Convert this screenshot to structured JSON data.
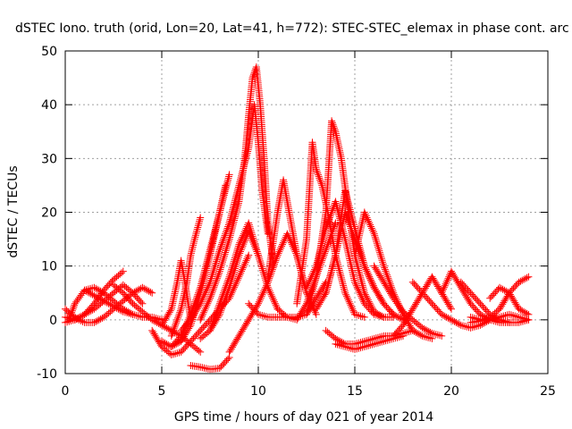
{
  "chart_data": {
    "type": "scatter",
    "title": "dSTEC Iono. truth (orid, Lon=20, Lat=41, h=772): STEC-STEC_elemax in phase cont. arc",
    "xlabel": "GPS time / hours of day 021 of year 2014",
    "ylabel": "dSTEC  / TECUs",
    "xlim": [
      0,
      25
    ],
    "ylim": [
      -10,
      50
    ],
    "x_ticks": [
      0,
      5,
      10,
      15,
      20,
      25
    ],
    "y_ticks": [
      -10,
      0,
      10,
      20,
      30,
      40,
      50
    ],
    "x_tick_labels": [
      "0",
      "5",
      "10",
      "15",
      "20",
      "25"
    ],
    "y_tick_labels": [
      "-10",
      "0",
      "10",
      "20",
      "30",
      "40",
      "50"
    ],
    "grid": true,
    "marker": "plus",
    "marker_color": "#ff0000",
    "series": [
      {
        "x": [
          0.0,
          0.5,
          1.0,
          1.5,
          2.0,
          2.5,
          3.0
        ],
        "y": [
          0.5,
          0.0,
          1.0,
          3.0,
          5.5,
          7.5,
          9.0
        ]
      },
      {
        "x": [
          0.0,
          0.5,
          1.0,
          1.5,
          2.0,
          2.5,
          3.0,
          3.5,
          4.0
        ],
        "y": [
          -0.5,
          0.0,
          1.0,
          2.0,
          3.5,
          5.0,
          6.5,
          5.0,
          3.0
        ]
      },
      {
        "x": [
          0.0,
          0.3,
          0.7,
          1.0,
          1.5,
          2.0,
          2.5,
          3.0,
          3.5,
          4.0,
          4.5
        ],
        "y": [
          2.0,
          1.0,
          0.0,
          -0.5,
          -0.5,
          0.5,
          2.0,
          3.5,
          5.0,
          6.0,
          5.0
        ]
      },
      {
        "x": [
          0.2,
          0.5,
          1.0,
          1.5,
          2.0,
          2.5,
          3.0,
          3.5
        ],
        "y": [
          0.0,
          3.0,
          5.5,
          6.0,
          5.0,
          3.5,
          2.0,
          1.0
        ]
      },
      {
        "x": [
          1.0,
          1.5,
          2.0,
          2.5,
          3.0,
          3.5,
          4.0,
          4.5,
          5.0
        ],
        "y": [
          5.5,
          4.5,
          3.5,
          2.5,
          1.5,
          1.0,
          0.5,
          0.5,
          0.0
        ]
      },
      {
        "x": [
          2.5,
          3.0,
          3.5,
          4.0,
          4.5,
          5.0,
          5.5,
          6.0,
          6.5,
          7.0
        ],
        "y": [
          6.5,
          5.0,
          3.0,
          1.5,
          0.0,
          -1.0,
          -2.0,
          -3.0,
          -4.5,
          -6.0
        ]
      },
      {
        "x": [
          4.5,
          5.0,
          5.5,
          6.0,
          6.5,
          7.0,
          7.5,
          8.0,
          8.5,
          9.0,
          9.5
        ],
        "y": [
          -2.0,
          -5.0,
          -6.5,
          -6.0,
          -4.0,
          -2.0,
          0.0,
          2.0,
          4.0,
          8.0,
          12.0
        ]
      },
      {
        "x": [
          5.0,
          5.5,
          5.8,
          6.0,
          6.2,
          6.5
        ],
        "y": [
          -1.0,
          2.0,
          7.0,
          11.0,
          7.0,
          0.0
        ]
      },
      {
        "x": [
          5.5,
          6.0,
          6.3,
          6.5,
          6.7,
          7.0
        ],
        "y": [
          -3.0,
          2.0,
          7.0,
          12.0,
          15.0,
          19.0
        ]
      },
      {
        "x": [
          5.0,
          5.5,
          6.0,
          6.5,
          7.0,
          7.5,
          8.0,
          8.3
        ],
        "y": [
          -4.0,
          -5.0,
          -4.0,
          -1.0,
          5.0,
          12.0,
          20.0,
          25.0
        ]
      },
      {
        "x": [
          5.5,
          6.0,
          6.5,
          7.0,
          7.5,
          8.0,
          8.5
        ],
        "y": [
          -5.0,
          -3.0,
          1.0,
          6.0,
          13.0,
          20.0,
          27.0
        ]
      },
      {
        "x": [
          6.0,
          6.5,
          7.0,
          7.5,
          8.0,
          8.5,
          9.0,
          9.5,
          9.8,
          10.0,
          10.2,
          10.5
        ],
        "y": [
          -2.0,
          0.0,
          3.0,
          7.0,
          13.0,
          18.0,
          25.0,
          32.0,
          40.0,
          33.0,
          24.0,
          16.0
        ]
      },
      {
        "x": [
          7.0,
          7.5,
          8.0,
          8.5,
          9.0,
          9.3,
          9.5,
          9.7,
          9.9,
          10.1,
          10.3,
          10.5,
          10.8
        ],
        "y": [
          0.0,
          4.0,
          9.0,
          15.0,
          22.0,
          30.0,
          38.0,
          45.0,
          47.0,
          40.0,
          30.0,
          18.0,
          10.0
        ]
      },
      {
        "x": [
          7.5,
          8.0,
          8.5,
          9.0,
          9.5,
          10.0
        ],
        "y": [
          -2.0,
          3.0,
          8.0,
          14.0,
          18.0,
          12.0
        ]
      },
      {
        "x": [
          7.0,
          7.5,
          8.0,
          8.5,
          9.0,
          9.5,
          10.0,
          10.5,
          11.0
        ],
        "y": [
          -3.5,
          -2.0,
          1.0,
          6.0,
          12.0,
          16.5,
          12.0,
          6.0,
          2.0
        ]
      },
      {
        "x": [
          6.5,
          7.0,
          7.5,
          8.0,
          8.5
        ],
        "y": [
          -8.5,
          -8.8,
          -9.2,
          -9.0,
          -7.0
        ]
      },
      {
        "x": [
          8.5,
          9.0,
          9.5,
          10.0,
          10.5,
          11.0,
          11.5,
          12.0,
          12.5
        ],
        "y": [
          -6.0,
          -3.0,
          0.0,
          3.0,
          7.0,
          12.0,
          16.0,
          12.0,
          5.0
        ]
      },
      {
        "x": [
          9.5,
          10.0,
          10.5,
          11.0,
          11.5,
          12.0,
          12.5,
          13.0,
          13.5
        ],
        "y": [
          3.0,
          1.0,
          0.5,
          0.5,
          0.5,
          0.5,
          1.0,
          4.0,
          7.0
        ]
      },
      {
        "x": [
          10.5,
          11.0,
          11.3,
          11.6,
          12.0,
          12.5,
          13.0
        ],
        "y": [
          8.0,
          20.0,
          26.0,
          20.0,
          12.0,
          5.0,
          1.0
        ]
      },
      {
        "x": [
          11.0,
          11.5,
          12.0,
          12.5,
          13.0,
          13.5,
          14.0
        ],
        "y": [
          2.0,
          0.5,
          0.0,
          3.0,
          8.0,
          13.0,
          18.0
        ]
      },
      {
        "x": [
          12.0,
          12.5,
          12.8,
          13.0,
          13.3,
          13.6,
          14.0,
          14.5,
          15.0,
          15.5
        ],
        "y": [
          3.0,
          15.0,
          33.0,
          28.0,
          25.0,
          20.0,
          12.0,
          5.0,
          1.0,
          0.5
        ]
      },
      {
        "x": [
          12.5,
          13.0,
          13.5,
          14.0,
          14.5,
          15.0,
          15.5,
          16.0,
          16.5,
          17.0
        ],
        "y": [
          6.0,
          10.0,
          17.0,
          22.0,
          15.0,
          7.0,
          3.0,
          1.0,
          0.5,
          0.5
        ]
      },
      {
        "x": [
          13.0,
          13.5,
          14.0,
          14.5,
          15.0,
          15.5,
          16.0,
          16.5,
          17.0
        ],
        "y": [
          2.0,
          5.0,
          12.0,
          24.0,
          17.0,
          10.0,
          6.0,
          3.0,
          1.0
        ]
      },
      {
        "x": [
          12.5,
          13.0,
          13.5,
          13.8,
          14.0,
          14.3,
          14.6,
          15.0,
          15.5,
          16.0,
          16.5
        ],
        "y": [
          1.0,
          8.0,
          20.0,
          37.0,
          35.0,
          30.0,
          22.0,
          12.0,
          5.0,
          1.5,
          0.5
        ]
      },
      {
        "x": [
          13.5,
          14.0,
          14.5,
          15.0,
          15.5,
          16.0,
          16.5,
          17.0,
          17.5
        ],
        "y": [
          5.0,
          12.0,
          20.0,
          15.0,
          10.0,
          6.0,
          3.0,
          1.0,
          0.0
        ]
      },
      {
        "x": [
          13.5,
          14.0,
          14.5,
          15.0,
          15.5,
          16.0,
          16.5,
          17.0,
          17.5,
          18.0
        ],
        "y": [
          -2.0,
          -3.5,
          -4.5,
          -4.5,
          -4.0,
          -3.5,
          -3.0,
          -3.0,
          -2.5,
          -2.0
        ]
      },
      {
        "x": [
          14.0,
          14.5,
          15.0,
          15.5,
          16.0,
          16.5,
          17.0,
          17.5
        ],
        "y": [
          -4.5,
          -5.0,
          -5.5,
          -5.0,
          -4.5,
          -4.0,
          -3.5,
          -3.0
        ]
      },
      {
        "x": [
          15.0,
          15.5,
          16.0,
          16.5,
          17.0,
          17.5,
          18.0,
          18.5,
          19.0
        ],
        "y": [
          12.0,
          20.0,
          16.0,
          10.0,
          5.0,
          1.0,
          -2.0,
          -3.0,
          -3.5
        ]
      },
      {
        "x": [
          16.0,
          16.5,
          17.0,
          17.5,
          18.0,
          18.5,
          19.0,
          19.5
        ],
        "y": [
          10.0,
          7.0,
          4.0,
          1.5,
          0.0,
          -1.5,
          -2.5,
          -3.0
        ]
      },
      {
        "x": [
          17.0,
          17.5,
          18.0,
          18.5,
          19.0,
          19.5,
          20.0
        ],
        "y": [
          -3.0,
          -1.0,
          2.0,
          5.0,
          8.0,
          5.0,
          2.0
        ]
      },
      {
        "x": [
          18.0,
          18.5,
          19.0,
          19.5,
          20.0,
          20.5,
          21.0,
          21.5,
          22.0
        ],
        "y": [
          7.0,
          5.0,
          3.0,
          1.0,
          0.0,
          -1.0,
          -1.5,
          -1.0,
          0.0
        ]
      },
      {
        "x": [
          19.5,
          20.0,
          20.5,
          21.0,
          21.5,
          22.0,
          22.5,
          23.0
        ],
        "y": [
          5.0,
          9.0,
          6.0,
          3.0,
          1.0,
          0.0,
          -0.5,
          -0.5
        ]
      },
      {
        "x": [
          20.5,
          21.0,
          21.5,
          22.0,
          22.5,
          23.0,
          23.5,
          24.0
        ],
        "y": [
          7.0,
          5.0,
          3.0,
          1.0,
          0.0,
          -0.5,
          -0.5,
          0.0
        ]
      },
      {
        "x": [
          21.0,
          21.5,
          22.0,
          22.5,
          23.0,
          23.5,
          24.0
        ],
        "y": [
          -0.5,
          -0.2,
          0.5,
          2.0,
          5.0,
          7.0,
          8.0
        ]
      },
      {
        "x": [
          22.0,
          22.5,
          23.0,
          23.5,
          24.0
        ],
        "y": [
          4.0,
          6.0,
          5.0,
          2.0,
          1.0
        ]
      },
      {
        "x": [
          21.0,
          21.5,
          22.0,
          22.5,
          23.0,
          23.5,
          24.0
        ],
        "y": [
          0.5,
          0.0,
          0.0,
          0.5,
          1.0,
          0.5,
          0.0
        ]
      }
    ]
  }
}
